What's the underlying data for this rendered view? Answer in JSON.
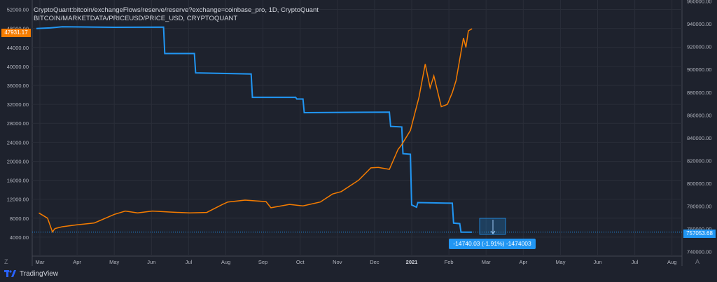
{
  "header": {
    "line1": "CryptoQuant:bitcoin/exchangeFlows/reserve/reserve?exchange=coinbase_pro, 1D, CryptoQuant",
    "line2": "BITCOIN/MARKETDATA/PRICEUSD/PRICE_USD, CRYPTOQUANT"
  },
  "badges": {
    "last_price": "47931.17",
    "last_reserve": "757053.68",
    "measure": "-14740.03 (-1.91%) -1474003"
  },
  "footer": {
    "brand": "TradingView",
    "left_corner": "Z",
    "right_corner": "A"
  },
  "colors": {
    "background": "#1e222d",
    "price": "#f57c00",
    "reserve": "#2196f3",
    "grid": "#2a2e39",
    "text": "#b2b5be"
  },
  "chart_data": {
    "type": "line",
    "x_axis": {
      "ticks": [
        "Mar",
        "Apr",
        "May",
        "Jun",
        "Jul",
        "Aug",
        "Sep",
        "Oct",
        "Nov",
        "Dec",
        "2021",
        "Feb",
        "Mar",
        "Apr",
        "May",
        "Jun",
        "Jul",
        "Aug"
      ]
    },
    "left_axis": {
      "ticks": [
        "52000.00",
        "48000.00",
        "44000.00",
        "40000.00",
        "36000.00",
        "32000.00",
        "28000.00",
        "24000.00",
        "20000.00",
        "16000.00",
        "12000.00",
        "8000.00",
        "4000.00"
      ],
      "range": [
        0,
        54000
      ]
    },
    "right_axis": {
      "ticks": [
        "960000.00",
        "940000.00",
        "920000.00",
        "900000.00",
        "880000.00",
        "860000.00",
        "840000.00",
        "820000.00",
        "800000.00",
        "780000.00",
        "760000.00",
        "740000.00"
      ],
      "range": [
        736000,
        961000
      ]
    },
    "series": [
      {
        "axis": "left",
        "x": [
          "2020-03-01",
          "2020-03-08",
          "2020-03-12",
          "2020-03-14",
          "2020-03-20",
          "2020-04-01",
          "2020-04-15",
          "2020-05-01",
          "2020-05-10",
          "2020-05-20",
          "2020-06-01",
          "2020-06-15",
          "2020-07-01",
          "2020-07-15",
          "2020-07-27",
          "2020-08-01",
          "2020-08-15",
          "2020-09-01",
          "2020-09-05",
          "2020-09-20",
          "2020-10-01",
          "2020-10-15",
          "2020-10-25",
          "2020-11-01",
          "2020-11-15",
          "2020-11-25",
          "2020-12-01",
          "2020-12-10",
          "2020-12-17",
          "2020-12-20",
          "2020-12-27",
          "2021-01-03",
          "2021-01-08",
          "2021-01-12",
          "2021-01-15",
          "2021-01-21",
          "2021-01-26",
          "2021-01-30",
          "2021-02-02",
          "2021-02-08",
          "2021-02-10",
          "2021-02-12",
          "2021-02-15"
        ],
        "values": [
          9100,
          8000,
          5100,
          5800,
          6200,
          6600,
          7000,
          8800,
          9500,
          9100,
          9500,
          9300,
          9100,
          9200,
          10800,
          11400,
          11800,
          11500,
          10200,
          10900,
          10600,
          11400,
          13100,
          13600,
          16000,
          18600,
          18700,
          18300,
          22500,
          23500,
          26500,
          33500,
          40500,
          35500,
          38000,
          31500,
          32000,
          34500,
          37000,
          46000,
          44000,
          47500,
          47931.17
        ]
      },
      {
        "axis": "right",
        "x": [
          "2020-02-28",
          "2020-03-10",
          "2020-03-20",
          "2020-05-01",
          "2020-06-10",
          "2020-06-11",
          "2020-07-05",
          "2020-07-06",
          "2020-08-20",
          "2020-08-21",
          "2020-09-25",
          "2020-09-26",
          "2020-10-01",
          "2020-10-02",
          "2020-12-10",
          "2020-12-11",
          "2020-12-20",
          "2020-12-21",
          "2020-12-27",
          "2020-12-28",
          "2021-01-01",
          "2021-01-02",
          "2021-01-30",
          "2021-01-31",
          "2021-02-05",
          "2021-02-06",
          "2021-02-15"
        ],
        "values": [
          936000,
          936500,
          937500,
          937000,
          937200,
          914000,
          914000,
          897000,
          896000,
          875500,
          875500,
          874000,
          874000,
          862000,
          862500,
          850000,
          849500,
          826000,
          825500,
          781000,
          779000,
          783000,
          782500,
          765000,
          764500,
          757053.68,
          757053.68
        ]
      }
    ],
    "grid": true
  }
}
